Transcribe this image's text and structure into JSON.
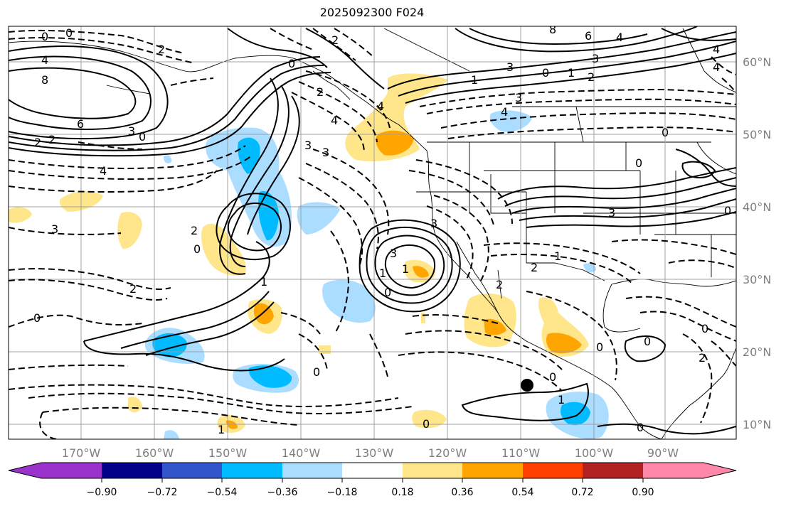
{
  "title": "2025092300 F024",
  "latitude_labels": [
    "60°N",
    "50°N",
    "40°N",
    "30°N",
    "20°N",
    "10°N"
  ],
  "longitude_labels": [
    "170°W",
    "160°W",
    "150°W",
    "140°W",
    "130°W",
    "120°W",
    "110°W",
    "100°W",
    "90°W"
  ],
  "colorbar": {
    "colors": [
      "#9933cc",
      "#000088",
      "#3355cc",
      "#00bbff",
      "#aaddff",
      "#ffffff",
      "#ffe68a",
      "#ffa500",
      "#ff4000",
      "#b22222",
      "#ff88aa"
    ],
    "tick_labels": [
      "−0.90",
      "−0.72",
      "−0.54",
      "−0.36",
      "−0.18",
      "0.18",
      "0.36",
      "0.54",
      "0.72",
      "0.90"
    ]
  },
  "contour_labels": [
    "0",
    "0",
    "2",
    "4",
    "8",
    "6",
    "2",
    "2",
    "3",
    "0",
    "4",
    "3",
    "2",
    "2",
    "0",
    "1",
    "3",
    "2",
    "0",
    "4",
    "3",
    "4",
    "4",
    "2",
    "8",
    "6",
    "4",
    "3",
    "1",
    "0",
    "2",
    "1",
    "3",
    "4",
    "0",
    "3",
    "0",
    "3",
    "0",
    "1",
    "2",
    "3",
    "1",
    "1",
    "2",
    "0",
    "3",
    "0",
    "0",
    "0",
    "0",
    "0",
    "2",
    "0",
    "0",
    "1",
    "0",
    "1",
    "4"
  ],
  "marker_color": "#000000"
}
